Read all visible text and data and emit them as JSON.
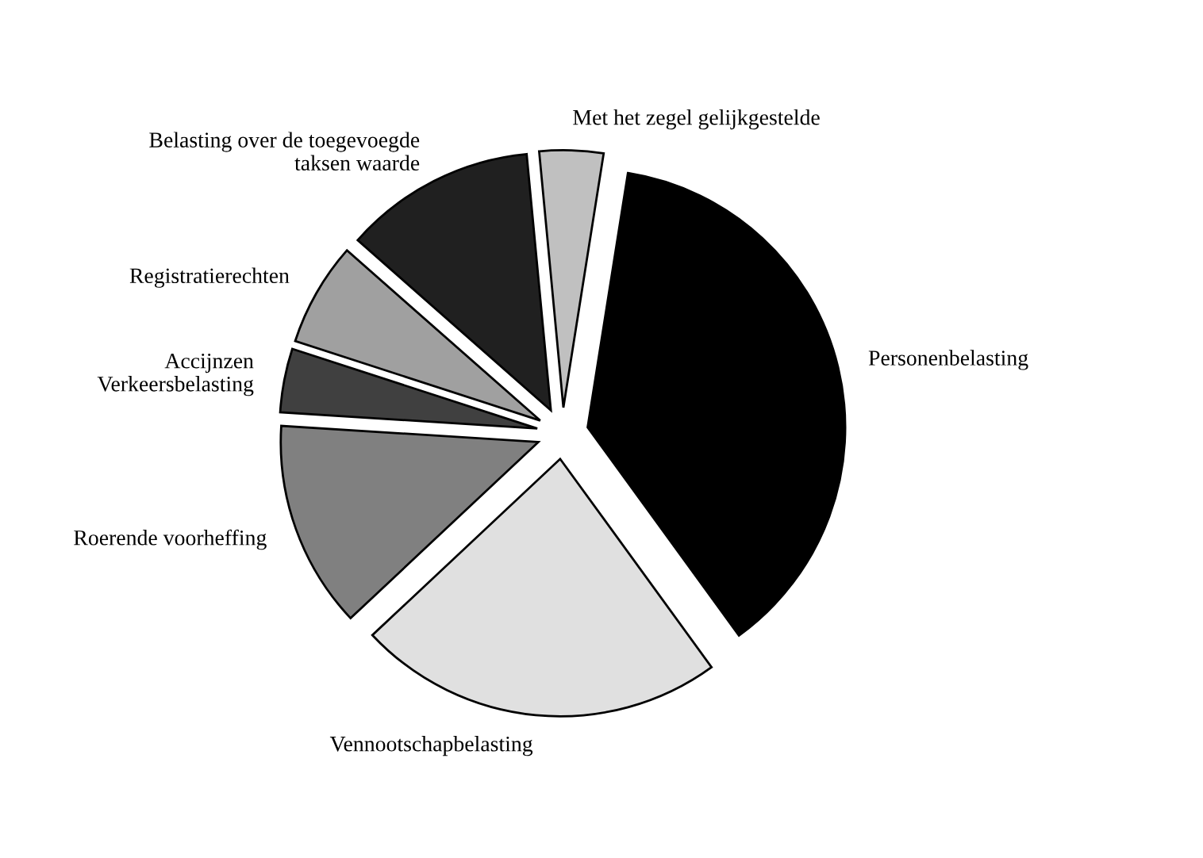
{
  "chart_data": {
    "type": "pie",
    "categories": [
      "Personenbelasting",
      "Vennootschapbelasting",
      "Roerende voorheffing",
      "Accijnzen\nVerkeersbelasting",
      "Registratierechten",
      "Belasting over de toegevoegde\ntaksen waarde",
      "Met het zegel gelijkgestelde"
    ],
    "values": [
      37.5,
      23,
      13,
      4,
      6.5,
      12,
      4
    ],
    "colors": [
      "#000000",
      "#e0e0e0",
      "#808080",
      "#404040",
      "#a0a0a0",
      "#202020",
      "#c0c0c0"
    ]
  }
}
